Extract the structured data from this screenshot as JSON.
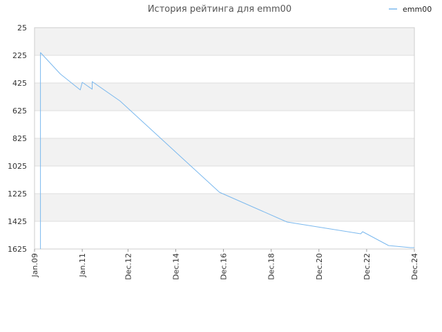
{
  "chart_data": {
    "type": "line",
    "title": "История рейтинга для emm00",
    "xlabel": "",
    "ylabel": "",
    "y_inverted": true,
    "ylim": [
      25,
      1625
    ],
    "xlim": [
      "2009-01",
      "2024-12"
    ],
    "y_ticks": [
      "25",
      "225",
      "425",
      "625",
      "825",
      "1025",
      "1225",
      "1425",
      "1625"
    ],
    "x_ticks": [
      "Jan.09",
      "Jan.11",
      "Dec.12",
      "Dec.14",
      "Dec.16",
      "Dec.18",
      "Dec.20",
      "Dec.22",
      "Dec.24"
    ],
    "grid": "horizontal alternating bands",
    "legend_position": "top-right",
    "colors": {
      "series": "#7ab8ee",
      "band": "#f2f2f2",
      "grid": "#dddddd"
    },
    "series": [
      {
        "name": "emm00",
        "points": [
          [
            "2009-04",
            1625
          ],
          [
            "2009-04",
            205
          ],
          [
            "2010-02",
            360
          ],
          [
            "2010-12",
            475
          ],
          [
            "2011-01",
            420
          ],
          [
            "2011-06",
            470
          ],
          [
            "2011-06",
            415
          ],
          [
            "2012-08",
            555
          ],
          [
            "2016-10",
            1215
          ],
          [
            "2019-08",
            1430
          ],
          [
            "2022-09",
            1515
          ],
          [
            "2022-10",
            1500
          ],
          [
            "2023-11",
            1600
          ],
          [
            "2024-10",
            1615
          ],
          [
            "2024-12",
            1615
          ]
        ]
      }
    ]
  }
}
